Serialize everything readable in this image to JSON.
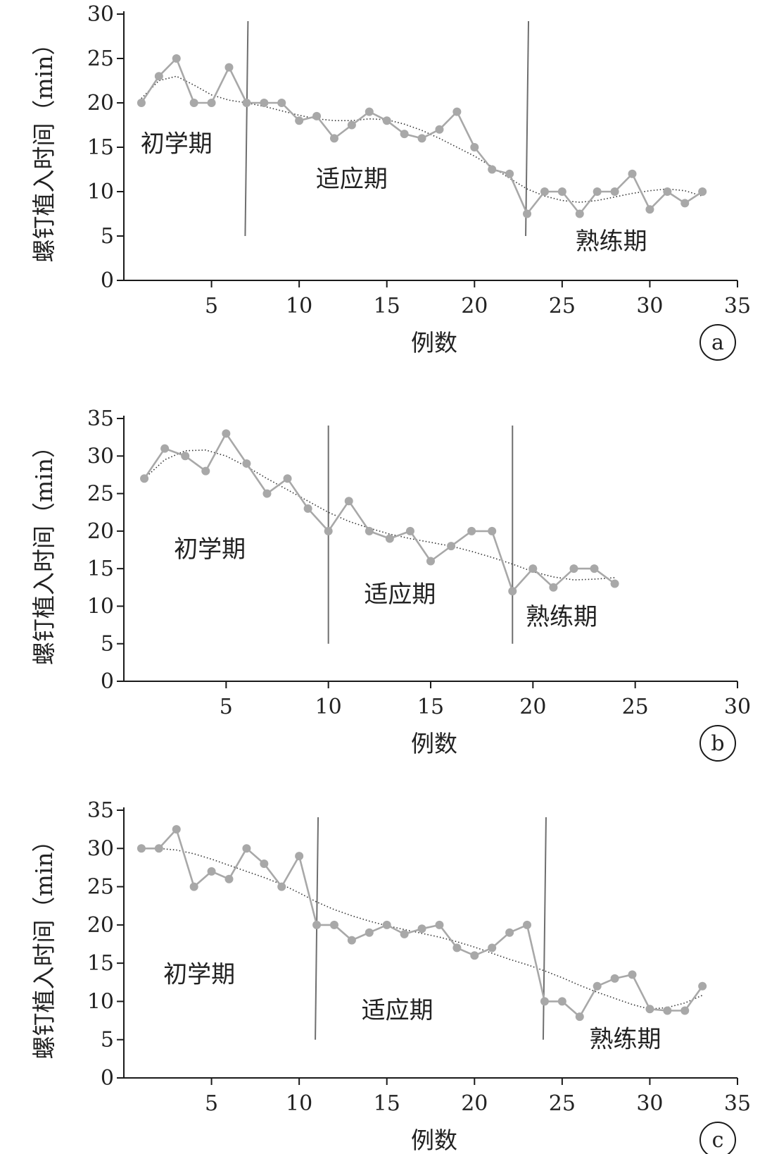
{
  "colors": {
    "axis": "#1a1a1a",
    "series": "#a8a8a8",
    "marker": "#a8a8a8",
    "trend": "#333333",
    "divider": "#6e6e6e",
    "text": "#222222"
  },
  "chart_data": [
    {
      "type": "line",
      "panel_label": "a",
      "xlabel": "例数",
      "ylabel": "螺钉植入时间（min）",
      "xlim": [
        0,
        35
      ],
      "ylim": [
        0,
        30
      ],
      "xticks": [
        5,
        10,
        15,
        20,
        25,
        30,
        35
      ],
      "yticks": [
        0,
        5,
        10,
        15,
        20,
        25,
        30
      ],
      "dividers": [
        7,
        23
      ],
      "phases": [
        {
          "label": "初学期",
          "x": 3,
          "y": 14.5
        },
        {
          "label": "适应期",
          "x": 13,
          "y": 10.5
        },
        {
          "label": "熟练期",
          "x": 27.8,
          "y": 3.5
        }
      ],
      "series": [
        {
          "name": "螺钉植入时间",
          "x": [
            1,
            2,
            3,
            4,
            5,
            6,
            7,
            8,
            9,
            10,
            11,
            12,
            13,
            14,
            15,
            16,
            17,
            18,
            19,
            20,
            21,
            22,
            23,
            24,
            25,
            26,
            27,
            28,
            29,
            30,
            31,
            32,
            33
          ],
          "values": [
            20,
            23,
            25,
            20,
            20,
            24,
            20,
            20,
            20,
            18,
            18.5,
            16,
            17.5,
            19,
            18,
            16.5,
            16,
            17,
            19,
            15,
            12.5,
            12,
            7.5,
            10,
            10,
            7.5,
            10,
            10,
            12,
            8,
            10,
            8.7,
            10
          ]
        }
      ],
      "trend": {
        "name": "趋势线",
        "x": [
          1,
          2,
          3,
          4,
          5,
          6,
          7,
          8,
          9,
          10,
          11,
          12,
          13,
          14,
          15,
          16,
          17,
          18,
          19,
          20,
          21,
          22,
          23,
          24,
          25,
          26,
          27,
          28,
          29,
          30,
          31,
          32,
          33
        ],
        "values": [
          20.5,
          22.5,
          23,
          22,
          20.9,
          20.3,
          20,
          19.6,
          19.1,
          18.6,
          18.2,
          18,
          18,
          18.2,
          18.1,
          17.6,
          16.9,
          16,
          15,
          14,
          12.8,
          11.5,
          10.3,
          9.5,
          9,
          8.8,
          9,
          9.4,
          9.8,
          10.1,
          10.3,
          10.1,
          9.5
        ]
      }
    },
    {
      "type": "line",
      "panel_label": "b",
      "xlabel": "例数",
      "ylabel": "螺钉植入时间（min）",
      "xlim": [
        0,
        30
      ],
      "ylim": [
        0,
        35
      ],
      "xticks": [
        5,
        10,
        15,
        20,
        25,
        30
      ],
      "yticks": [
        0,
        5,
        10,
        15,
        20,
        25,
        30,
        35
      ],
      "dividers": [
        10,
        19
      ],
      "phases": [
        {
          "label": "初学期",
          "x": 4.2,
          "y": 16.5
        },
        {
          "label": "适应期",
          "x": 13.5,
          "y": 10.5
        },
        {
          "label": "熟练期",
          "x": 21.4,
          "y": 7.5
        }
      ],
      "series": [
        {
          "name": "螺钉植入时间",
          "x": [
            1,
            2,
            3,
            4,
            5,
            6,
            7,
            8,
            9,
            10,
            11,
            12,
            13,
            14,
            15,
            16,
            17,
            18,
            19,
            20,
            21,
            22,
            23,
            24
          ],
          "values": [
            27,
            31,
            30,
            28,
            33,
            29,
            25,
            27,
            23,
            20,
            24,
            20,
            19,
            20,
            16,
            18,
            20,
            20,
            12,
            15,
            12.5,
            15,
            15,
            13
          ]
        }
      ],
      "trend": {
        "name": "趋势线",
        "x": [
          1,
          2,
          3,
          4,
          5,
          6,
          7,
          8,
          9,
          10,
          11,
          12,
          13,
          14,
          15,
          16,
          17,
          18,
          19,
          20,
          21,
          22,
          23,
          24
        ],
        "values": [
          27,
          29.5,
          30.7,
          30.8,
          30,
          28.6,
          27,
          25.5,
          24,
          22.5,
          21.3,
          20.4,
          19.6,
          19,
          18.5,
          18,
          17.3,
          16.5,
          15.6,
          14.6,
          13.9,
          13.5,
          13.6,
          13.8
        ]
      }
    },
    {
      "type": "line",
      "panel_label": "c",
      "xlabel": "例数",
      "ylabel": "螺钉植入时间（min）",
      "xlim": [
        0,
        35
      ],
      "ylim": [
        0,
        35
      ],
      "xticks": [
        5,
        10,
        15,
        20,
        25,
        30,
        35
      ],
      "yticks": [
        0,
        5,
        10,
        15,
        20,
        25,
        30,
        35
      ],
      "dividers": [
        11,
        24
      ],
      "phases": [
        {
          "label": "初学期",
          "x": 4.3,
          "y": 12.5
        },
        {
          "label": "适应期",
          "x": 15.6,
          "y": 7.8
        },
        {
          "label": "熟练期",
          "x": 28.6,
          "y": 4
        }
      ],
      "series": [
        {
          "name": "螺钉植入时间",
          "x": [
            1,
            2,
            3,
            4,
            5,
            6,
            7,
            8,
            9,
            10,
            11,
            12,
            13,
            14,
            15,
            16,
            17,
            18,
            19,
            20,
            21,
            22,
            23,
            24,
            25,
            26,
            27,
            28,
            29,
            30,
            31,
            32,
            33
          ],
          "values": [
            30,
            30,
            32.5,
            25,
            27,
            26,
            30,
            28,
            25,
            29,
            20,
            20,
            18,
            19,
            20,
            18.8,
            19.5,
            20,
            17,
            16,
            17,
            19,
            20,
            10,
            10,
            8,
            12,
            13,
            13.5,
            9,
            8.8,
            8.8,
            12
          ]
        }
      ],
      "trend": {
        "name": "趋势线",
        "x": [
          1,
          2,
          3,
          4,
          5,
          6,
          7,
          8,
          9,
          10,
          11,
          12,
          13,
          14,
          15,
          16,
          17,
          18,
          19,
          20,
          21,
          22,
          23,
          24,
          25,
          26,
          27,
          28,
          29,
          30,
          31,
          32,
          33
        ],
        "values": [
          30,
          30,
          29.8,
          29.3,
          28.6,
          27.8,
          27,
          26.2,
          25.3,
          24.2,
          23,
          22,
          21.2,
          20.5,
          19.9,
          19.4,
          18.9,
          18.4,
          17.8,
          17.1,
          16.3,
          15.5,
          14.8,
          14,
          13.1,
          12.1,
          11.2,
          10.4,
          9.6,
          9,
          9.2,
          9.8,
          10.8
        ]
      }
    }
  ]
}
